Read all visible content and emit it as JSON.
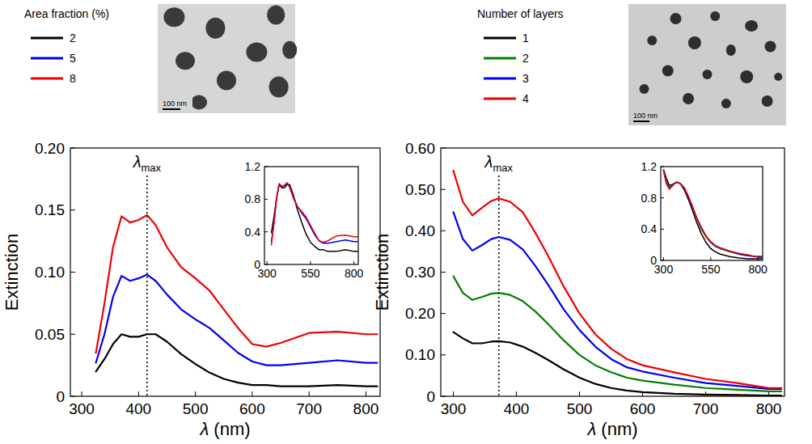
{
  "chart_data": [
    {
      "type": "line",
      "legend_title": "Area fraction (%)",
      "image_scale_bar": "100 nm",
      "x_label": "λ (nm)",
      "y_label": "Extinction",
      "annotation": {
        "text": "λ",
        "subscript": "max",
        "x": 415
      },
      "x": [
        325,
        340,
        355,
        370,
        385,
        400,
        415,
        430,
        450,
        475,
        500,
        525,
        550,
        575,
        600,
        625,
        650,
        700,
        750,
        800,
        820
      ],
      "series": [
        {
          "name": "2",
          "color": "#000000",
          "values": [
            0.02,
            0.03,
            0.042,
            0.05,
            0.048,
            0.048,
            0.05,
            0.05,
            0.044,
            0.034,
            0.026,
            0.019,
            0.014,
            0.011,
            0.009,
            0.009,
            0.008,
            0.008,
            0.009,
            0.008,
            0.008
          ]
        },
        {
          "name": "5",
          "color": "#0000ee",
          "values": [
            0.027,
            0.05,
            0.08,
            0.097,
            0.093,
            0.095,
            0.098,
            0.093,
            0.082,
            0.07,
            0.062,
            0.055,
            0.045,
            0.035,
            0.028,
            0.025,
            0.025,
            0.027,
            0.029,
            0.027,
            0.027
          ]
        },
        {
          "name": "8",
          "color": "#ee0000",
          "values": [
            0.035,
            0.075,
            0.12,
            0.145,
            0.14,
            0.142,
            0.146,
            0.138,
            0.12,
            0.104,
            0.095,
            0.085,
            0.07,
            0.055,
            0.042,
            0.04,
            0.043,
            0.051,
            0.052,
            0.05,
            0.05
          ]
        }
      ],
      "xlim": [
        280,
        825
      ],
      "xticks": [
        300,
        400,
        500,
        600,
        700,
        800
      ],
      "ylim": [
        0,
        0.2
      ],
      "yticks": [
        0,
        0.05,
        {
          "value": 0.1,
          "label": "0.10"
        },
        0.15,
        {
          "value": 0.2,
          "label": "0.20"
        }
      ],
      "legend": "top-left"
    },
    {
      "type": "line",
      "x": [
        325,
        340,
        355,
        370,
        385,
        400,
        415,
        430,
        450,
        475,
        500,
        525,
        550,
        575,
        600,
        625,
        650,
        700,
        750,
        800,
        820
      ],
      "series": [
        {
          "color": "#000000",
          "values": [
            0.39,
            0.59,
            0.82,
            0.98,
            0.94,
            0.94,
            0.98,
            0.98,
            0.86,
            0.67,
            0.51,
            0.37,
            0.27,
            0.22,
            0.18,
            0.18,
            0.16,
            0.16,
            0.18,
            0.16,
            0.16
          ]
        },
        {
          "color": "#0000ee",
          "values": [
            0.28,
            0.51,
            0.82,
            0.99,
            0.95,
            0.97,
            1.0,
            0.95,
            0.84,
            0.71,
            0.63,
            0.56,
            0.46,
            0.36,
            0.29,
            0.26,
            0.26,
            0.28,
            0.3,
            0.28,
            0.28
          ]
        },
        {
          "color": "#ee0000",
          "values": [
            0.24,
            0.51,
            0.82,
            0.99,
            0.96,
            0.97,
            1.0,
            0.95,
            0.82,
            0.71,
            0.65,
            0.58,
            0.48,
            0.38,
            0.29,
            0.27,
            0.29,
            0.35,
            0.36,
            0.34,
            0.34
          ]
        }
      ],
      "xlim": [
        285,
        825
      ],
      "xticks": [
        300,
        550,
        800
      ],
      "ylim": [
        0,
        1.2
      ],
      "yticks": [
        0,
        0.4,
        0.8,
        1.2
      ]
    },
    {
      "type": "line",
      "legend_title": "Number of layers",
      "image_scale_bar": "100 nm",
      "x_label": "λ (nm)",
      "y_label": "Extinction",
      "annotation": {
        "text": "λ",
        "subscript": "max",
        "x": 372
      },
      "x": [
        300,
        315,
        330,
        345,
        360,
        372,
        390,
        410,
        430,
        450,
        475,
        500,
        525,
        550,
        575,
        600,
        650,
        700,
        750,
        800,
        820
      ],
      "series": [
        {
          "name": "1",
          "color": "#000000",
          "values": [
            0.155,
            0.14,
            0.128,
            0.128,
            0.132,
            0.133,
            0.13,
            0.12,
            0.105,
            0.088,
            0.065,
            0.045,
            0.03,
            0.02,
            0.014,
            0.01,
            0.006,
            0.004,
            0.003,
            0.002,
            0.002
          ]
        },
        {
          "name": "2",
          "color": "#008000",
          "values": [
            0.29,
            0.25,
            0.233,
            0.24,
            0.248,
            0.25,
            0.245,
            0.23,
            0.205,
            0.175,
            0.135,
            0.1,
            0.075,
            0.058,
            0.045,
            0.038,
            0.028,
            0.02,
            0.016,
            0.012,
            0.012
          ]
        },
        {
          "name": "3",
          "color": "#0000ee",
          "values": [
            0.445,
            0.38,
            0.352,
            0.365,
            0.38,
            0.385,
            0.378,
            0.355,
            0.315,
            0.27,
            0.21,
            0.16,
            0.12,
            0.09,
            0.07,
            0.06,
            0.045,
            0.032,
            0.025,
            0.018,
            0.018
          ]
        },
        {
          "name": "4",
          "color": "#ee0000",
          "values": [
            0.545,
            0.47,
            0.437,
            0.455,
            0.472,
            0.478,
            0.47,
            0.445,
            0.395,
            0.34,
            0.265,
            0.2,
            0.15,
            0.115,
            0.09,
            0.075,
            0.058,
            0.042,
            0.032,
            0.02,
            0.02
          ]
        }
      ],
      "xlim": [
        280,
        825
      ],
      "xticks": [
        300,
        400,
        500,
        600,
        700,
        800
      ],
      "ylim": [
        0,
        0.6
      ],
      "yticks": [
        0,
        {
          "value": 0.1,
          "label": "0.10"
        },
        {
          "value": 0.2,
          "label": "0.20"
        },
        {
          "value": 0.3,
          "label": "0.30"
        },
        {
          "value": 0.4,
          "label": "0.40"
        },
        {
          "value": 0.5,
          "label": "0.50"
        },
        {
          "value": 0.6,
          "label": "0.60"
        }
      ],
      "legend": "top-left"
    },
    {
      "type": "line",
      "x": [
        300,
        315,
        330,
        345,
        360,
        372,
        390,
        410,
        430,
        450,
        475,
        500,
        525,
        550,
        575,
        600,
        650,
        700,
        750,
        800,
        820
      ],
      "series": [
        {
          "color": "#000000",
          "values": [
            1.16,
            1.05,
            0.96,
            0.97,
            0.99,
            1.0,
            0.98,
            0.9,
            0.79,
            0.66,
            0.49,
            0.34,
            0.23,
            0.15,
            0.11,
            0.08,
            0.05,
            0.03,
            0.02,
            0.02,
            0.02
          ]
        },
        {
          "color": "#008000",
          "values": [
            1.16,
            1.0,
            0.93,
            0.96,
            0.99,
            1.0,
            0.98,
            0.92,
            0.82,
            0.7,
            0.54,
            0.4,
            0.3,
            0.23,
            0.18,
            0.15,
            0.11,
            0.08,
            0.06,
            0.05,
            0.05
          ]
        },
        {
          "color": "#0000ee",
          "values": [
            1.15,
            0.99,
            0.92,
            0.95,
            0.99,
            1.0,
            0.98,
            0.92,
            0.82,
            0.7,
            0.55,
            0.42,
            0.31,
            0.23,
            0.18,
            0.16,
            0.12,
            0.08,
            0.06,
            0.05,
            0.05
          ]
        },
        {
          "color": "#ee0000",
          "values": [
            1.14,
            0.98,
            0.91,
            0.95,
            0.99,
            1.0,
            0.98,
            0.93,
            0.83,
            0.71,
            0.55,
            0.42,
            0.31,
            0.24,
            0.19,
            0.16,
            0.12,
            0.09,
            0.07,
            0.04,
            0.04
          ]
        }
      ],
      "xlim": [
        285,
        825
      ],
      "xticks": [
        300,
        550,
        800
      ],
      "ylim": [
        0,
        1.2
      ],
      "yticks": [
        0,
        0.4,
        0.8,
        1.2
      ]
    }
  ]
}
